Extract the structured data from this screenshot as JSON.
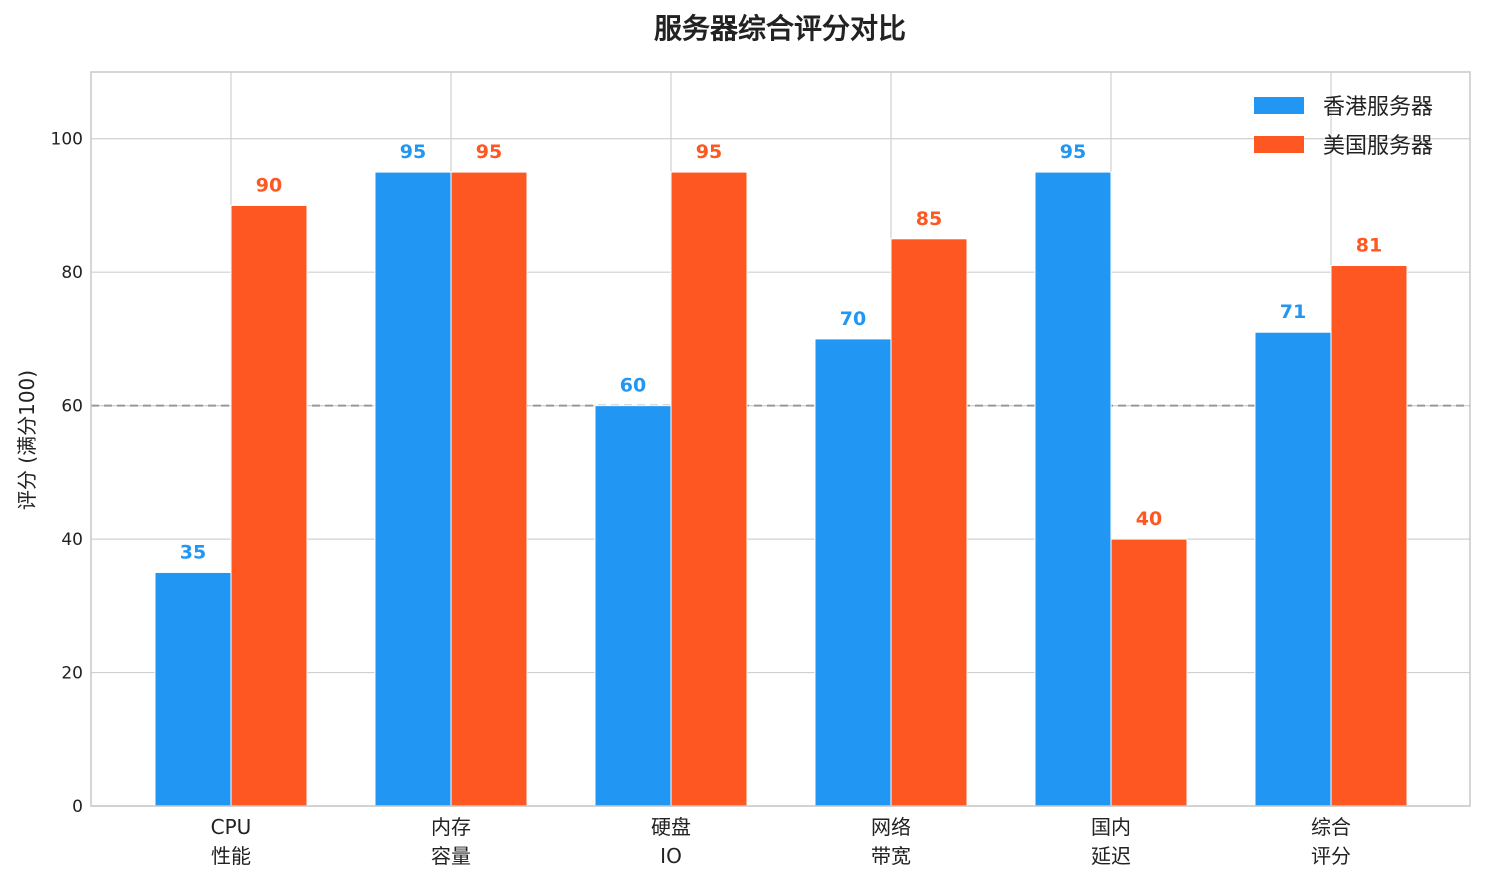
{
  "chart_data": {
    "type": "bar",
    "title": "服务器综合评分对比",
    "xlabel": "",
    "ylabel": "评分 (满分100)",
    "categories": [
      "CPU\n性能",
      "内存\n容量",
      "硬盘\nIO",
      "网络\n带宽",
      "国内\n延迟",
      "综合\n评分"
    ],
    "series": [
      {
        "name": "香港服务器",
        "color": "#2196F3",
        "values": [
          35,
          95,
          60,
          70,
          95,
          71
        ]
      },
      {
        "name": "美国服务器",
        "color": "#FF5722",
        "values": [
          90,
          95,
          95,
          85,
          40,
          81
        ]
      }
    ],
    "ylim": [
      0,
      110
    ],
    "yticks": [
      0,
      20,
      40,
      60,
      80,
      100
    ],
    "reference_line": {
      "value": 60,
      "style": "dashed",
      "color": "#999999"
    },
    "grid": true,
    "legend": "top-right",
    "data_labels": true
  }
}
